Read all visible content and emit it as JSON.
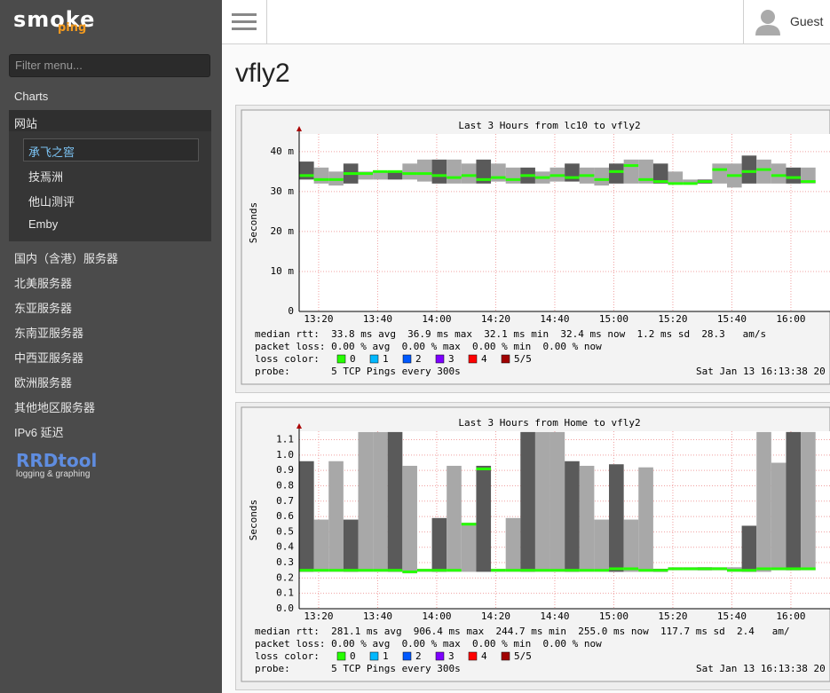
{
  "sidebar": {
    "logo": {
      "main": "smoke",
      "sub": "ping"
    },
    "filter_placeholder": "Filter menu...",
    "items": [
      "Charts",
      "网站"
    ],
    "sub_items": [
      "承飞之窖",
      "技焉洲",
      "他山测评",
      "Emby"
    ],
    "more_items": [
      "国内（含港）服务器",
      "北美服务器",
      "东亚服务器",
      "东南亚服务器",
      "中西亚服务器",
      "欧洲服务器",
      "其他地区服务器",
      "IPv6 延迟"
    ],
    "rrdtool": {
      "name": "RRDtool",
      "tagline": "logging & graphing"
    }
  },
  "topbar": {
    "user": "Guest"
  },
  "page_title": "vfly2",
  "charts": [
    {
      "type": "smokeping",
      "title": "Last 3 Hours from lc10 to vfly2",
      "y_label": "Seconds",
      "ylim": [
        0,
        44.4
      ],
      "yticks": [
        0,
        {
          "value": 10,
          "label": "10 m"
        },
        {
          "value": 20,
          "label": "20 m"
        },
        {
          "value": 30,
          "label": "30 m"
        },
        {
          "value": 40,
          "label": "40 m"
        }
      ],
      "xlim": [
        793.4,
        973.4
      ],
      "xticks": [
        {
          "value": 800,
          "label": "13:20"
        },
        {
          "value": 820,
          "label": "13:40"
        },
        {
          "value": 840,
          "label": "14:00"
        },
        {
          "value": 860,
          "label": "14:20"
        },
        {
          "value": 880,
          "label": "14:40"
        },
        {
          "value": 900,
          "label": "15:00"
        },
        {
          "value": 920,
          "label": "15:20"
        },
        {
          "value": 940,
          "label": "15:40"
        },
        {
          "value": 960,
          "label": "16:00"
        }
      ],
      "median": [
        34,
        33,
        33,
        34.5,
        34.5,
        35,
        35,
        34.5,
        34.5,
        34,
        33.5,
        34,
        33,
        33.5,
        33,
        34,
        33.5,
        34,
        33.5,
        34,
        33,
        35,
        36.5,
        33,
        32.5,
        32,
        32,
        32.5,
        35.5,
        34,
        35,
        35.5,
        34,
        33.5,
        32.5
      ],
      "smoke_high": [
        37.5,
        36,
        35,
        37,
        35,
        35,
        35,
        37,
        38,
        38,
        38,
        37,
        38,
        37,
        36,
        36,
        35,
        36,
        37,
        36,
        36,
        37,
        38,
        38,
        37,
        35,
        33,
        33,
        37,
        37,
        39,
        38,
        37,
        36,
        36
      ],
      "smoke_low": [
        33,
        32,
        31.5,
        32,
        33,
        33,
        33,
        33,
        32.5,
        32,
        32,
        32,
        32,
        32.5,
        32,
        32,
        32,
        32.5,
        32.5,
        32,
        31.5,
        32,
        32,
        32,
        32,
        32,
        32,
        32,
        32,
        31,
        32,
        32,
        32,
        32,
        32
      ],
      "stats": [
        "median rtt:  33.8 ms avg  36.9 ms max  32.1 ms min  32.4 ms now  1.2 ms sd  28.3   am/s",
        "packet loss: 0.00 % avg  0.00 % max  0.00 % min  0.00 % now"
      ],
      "loss_label": "loss color:",
      "loss_colors": [
        {
          "label": "0",
          "color": "#26ff00"
        },
        {
          "label": "1",
          "color": "#00b8ff"
        },
        {
          "label": "2",
          "color": "#0059ff"
        },
        {
          "label": "3",
          "color": "#7e00ff"
        },
        {
          "label": "4",
          "color": "#ff0000"
        },
        {
          "label": "5/5",
          "color": "#a10000"
        }
      ],
      "probe": "probe:       5 TCP Pings every 300s",
      "date": "Sat Jan 13 16:13:38 20"
    },
    {
      "type": "smokeping",
      "title": "Last 3 Hours from Home to vfly2",
      "y_label": "Seconds",
      "ylim": [
        0,
        1.155
      ],
      "yticks": [
        {
          "value": 0,
          "label": "0.0"
        },
        0.1,
        0.2,
        0.3,
        0.4,
        0.5,
        0.6,
        0.7,
        0.8,
        0.9,
        {
          "value": 1,
          "label": "1.0"
        },
        1.1
      ],
      "xlim": [
        793.4,
        973.4
      ],
      "xticks": [
        {
          "value": 800,
          "label": "13:20"
        },
        {
          "value": 820,
          "label": "13:40"
        },
        {
          "value": 840,
          "label": "14:00"
        },
        {
          "value": 860,
          "label": "14:20"
        },
        {
          "value": 880,
          "label": "14:40"
        },
        {
          "value": 900,
          "label": "15:00"
        },
        {
          "value": 920,
          "label": "15:20"
        },
        {
          "value": 940,
          "label": "15:40"
        },
        {
          "value": 960,
          "label": "16:00"
        }
      ],
      "median": [
        0.25,
        0.25,
        0.25,
        0.25,
        0.25,
        0.25,
        0.25,
        0.24,
        0.25,
        0.25,
        0.25,
        0.55,
        0.91,
        0.25,
        0.25,
        0.25,
        0.25,
        0.25,
        0.25,
        0.25,
        0.25,
        0.26,
        0.26,
        0.25,
        0.25,
        0.26,
        0.26,
        0.26,
        0.26,
        0.25,
        0.25,
        0.26,
        0.26,
        0.26,
        0.26
      ],
      "smoke_high": [
        0.96,
        0.58,
        0.96,
        0.58,
        1.15,
        1.15,
        1.15,
        0.93,
        0.26,
        0.59,
        0.93,
        0.56,
        0.93,
        0.26,
        0.59,
        1.15,
        1.15,
        1.15,
        0.96,
        0.93,
        0.58,
        0.94,
        0.58,
        0.92,
        0.26,
        0.27,
        0.27,
        0.27,
        0.27,
        0.27,
        0.54,
        1.15,
        0.95,
        1.15,
        1.15
      ],
      "smoke_low": [
        0.24,
        0.24,
        0.24,
        0.24,
        0.24,
        0.24,
        0.24,
        0.23,
        0.24,
        0.24,
        0.24,
        0.24,
        0.24,
        0.24,
        0.24,
        0.24,
        0.24,
        0.24,
        0.24,
        0.24,
        0.24,
        0.24,
        0.24,
        0.24,
        0.24,
        0.25,
        0.25,
        0.25,
        0.25,
        0.24,
        0.24,
        0.24,
        0.25,
        0.25,
        0.25
      ],
      "stats": [
        "median rtt:  281.1 ms avg  906.4 ms max  244.7 ms min  255.0 ms now  117.7 ms sd  2.4   am/",
        "packet loss: 0.00 % avg  0.00 % max  0.00 % min  0.00 % now"
      ],
      "loss_label": "loss color:",
      "loss_colors": [
        {
          "label": "0",
          "color": "#26ff00"
        },
        {
          "label": "1",
          "color": "#00b8ff"
        },
        {
          "label": "2",
          "color": "#0059ff"
        },
        {
          "label": "3",
          "color": "#7e00ff"
        },
        {
          "label": "4",
          "color": "#ff0000"
        },
        {
          "label": "5/5",
          "color": "#a10000"
        }
      ],
      "probe": "probe:       5 TCP Pings every 300s",
      "date": "Sat Jan 13 16:13:38 20"
    }
  ]
}
